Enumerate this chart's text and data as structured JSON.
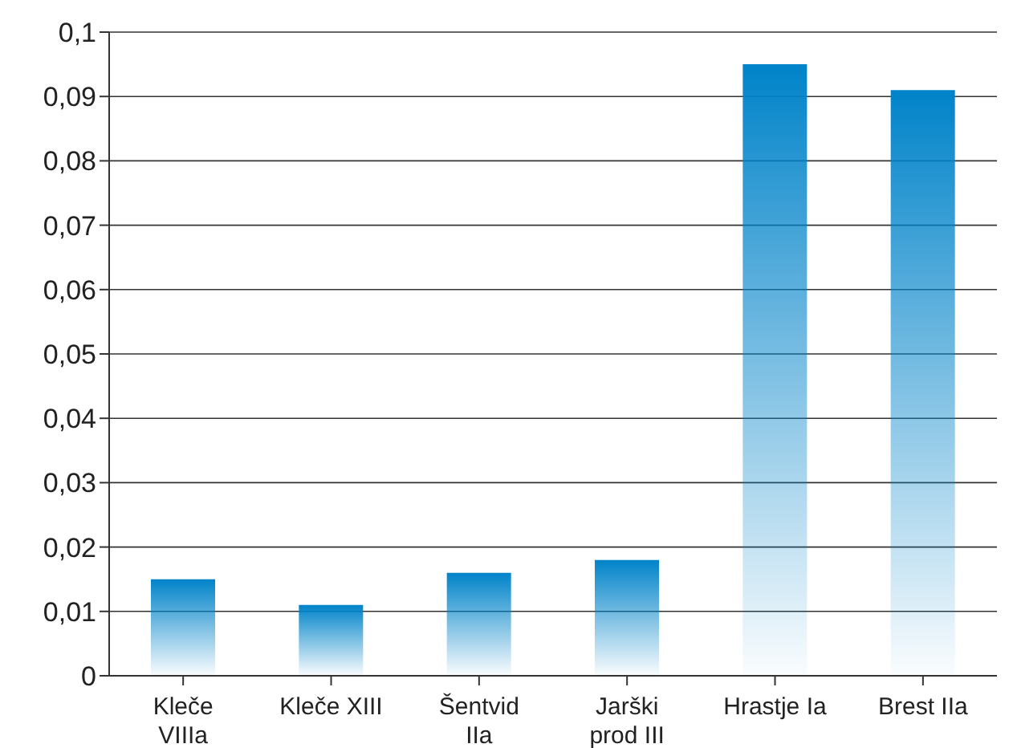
{
  "chart_data": {
    "type": "bar",
    "categories": [
      "Kleče VIIIa",
      "Kleče XIII",
      "Šentvid IIa",
      "Jarški prod III",
      "Hrastje Ia",
      "Brest IIa"
    ],
    "values": [
      0.015,
      0.011,
      0.016,
      0.018,
      0.095,
      0.091
    ],
    "color": "#0083c9",
    "ylim": [
      0,
      0.1
    ],
    "yticks": [
      0,
      {
        "value": 0.01,
        "label": "0,01"
      },
      {
        "value": 0.02,
        "label": "0,02"
      },
      {
        "value": 0.03,
        "label": "0,03"
      },
      {
        "value": 0.04,
        "label": "0,04"
      },
      {
        "value": 0.05,
        "label": "0,05"
      },
      {
        "value": 0.06,
        "label": "0,06"
      },
      {
        "value": 0.07,
        "label": "0,07"
      },
      {
        "value": 0.08,
        "label": "0,08"
      },
      {
        "value": 0.09,
        "label": "0,09"
      },
      {
        "value": 0.1,
        "label": "0,1"
      }
    ],
    "grid": "y"
  }
}
